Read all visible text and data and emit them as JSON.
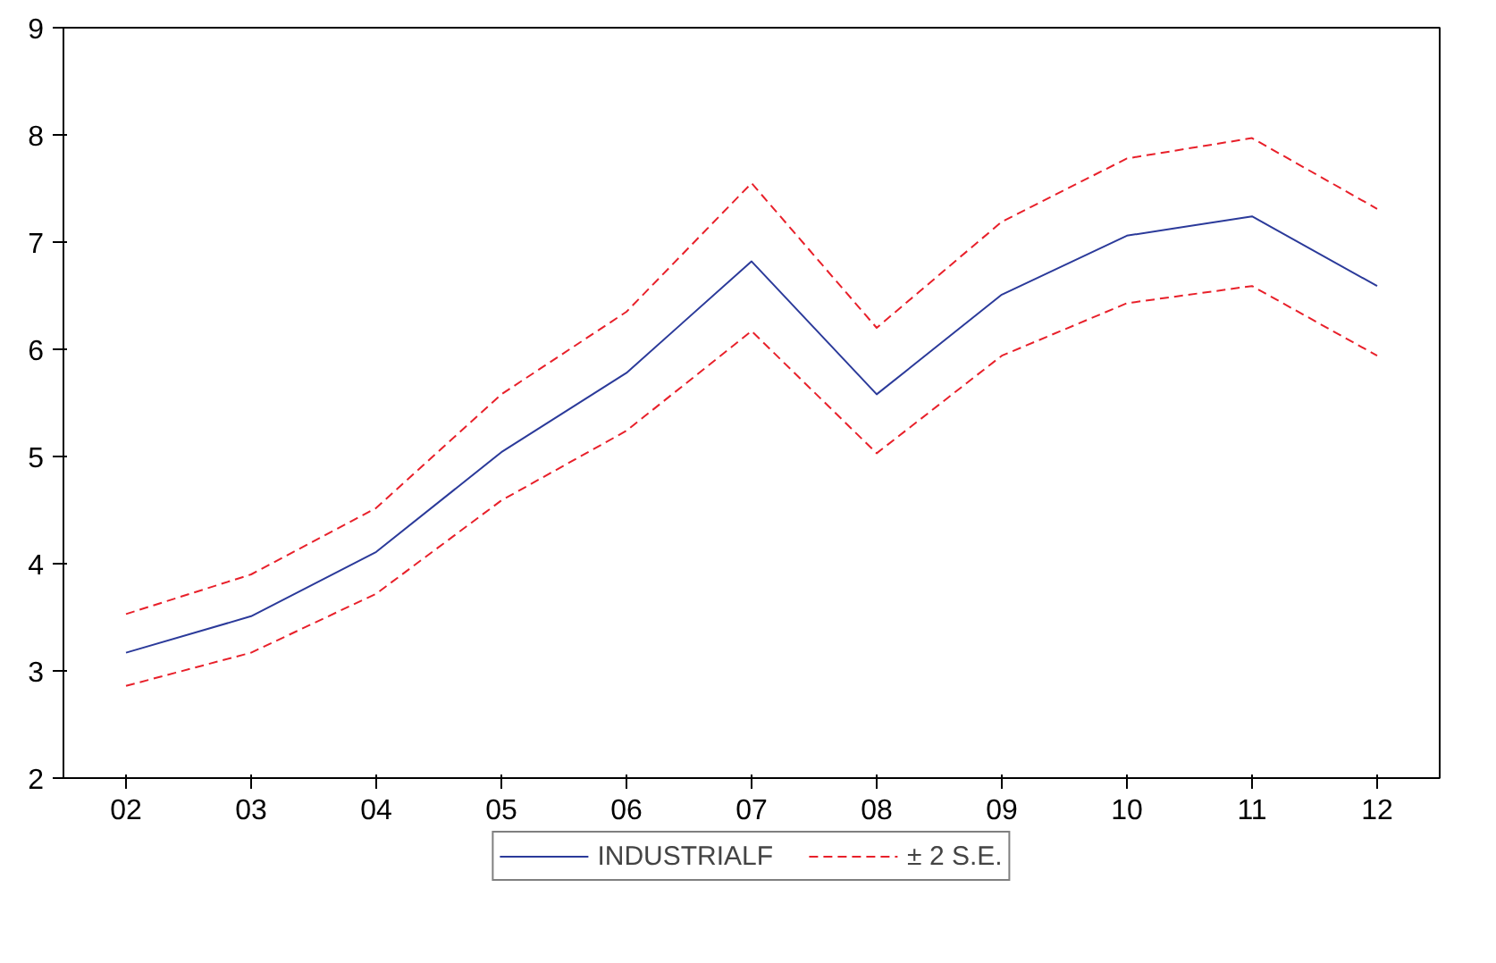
{
  "chart_data": {
    "type": "line",
    "categories": [
      "02",
      "03",
      "04",
      "05",
      "06",
      "07",
      "08",
      "09",
      "10",
      "11",
      "12"
    ],
    "series": [
      {
        "name": "INDUSTRIALF",
        "color": "#2b3a9a",
        "line_style": "solid",
        "values": [
          3.17,
          3.51,
          4.11,
          5.04,
          5.78,
          6.82,
          5.58,
          6.51,
          7.06,
          7.24,
          6.59
        ]
      },
      {
        "name": "± 2 S.E.",
        "color": "#e8202a",
        "line_style": "dashed",
        "values": [
          3.53,
          3.9,
          4.52,
          5.58,
          6.35,
          7.55,
          6.2,
          7.19,
          7.78,
          7.97,
          7.31
        ]
      },
      {
        "color": "#e8202a",
        "line_style": "dashed",
        "values": [
          2.86,
          3.17,
          3.72,
          4.59,
          5.24,
          6.17,
          5.03,
          5.94,
          6.43,
          6.59,
          5.94
        ]
      }
    ],
    "ylim": [
      2,
      9
    ],
    "yticks": [
      2,
      3,
      4,
      5,
      6,
      7,
      8,
      9
    ],
    "grid": false,
    "legend": "bottom",
    "marker": "none"
  }
}
